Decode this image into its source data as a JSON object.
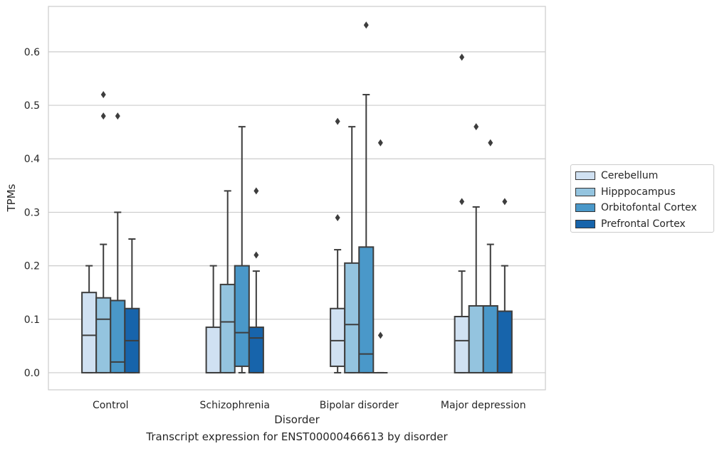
{
  "caption": "Transcript expression for ENST00000466613 by disorder",
  "colors": {
    "Cerebellum": "#d0e1f2",
    "Hipppocampus": "#94c4df",
    "Orbitofontal Cortex": "#4a98c9",
    "Prefrontal Cortex": "#1764ab",
    "box_edge": "#3d3d3d",
    "grid": "#cccccc"
  },
  "chart_data": {
    "type": "box",
    "xlabel": "Disorder",
    "ylabel": "TPMs",
    "ylim": [
      -0.032,
      0.685
    ],
    "yticks": [
      "0.0",
      "0.1",
      "0.2",
      "0.3",
      "0.4",
      "0.5",
      "0.6"
    ],
    "categories": [
      "Control",
      "Schizophrenia",
      "Bipolar disorder",
      "Major depression"
    ],
    "grid": "horizontal",
    "legend_position": "right",
    "series": [
      {
        "name": "Cerebellum",
        "boxes": [
          {
            "whislo": 0.0,
            "q1": 0.0,
            "med": 0.07,
            "q3": 0.15,
            "whishi": 0.2,
            "fliers": []
          },
          {
            "whislo": 0.0,
            "q1": 0.0,
            "med": 0.0,
            "q3": 0.085,
            "whishi": 0.2,
            "fliers": []
          },
          {
            "whislo": 0.0,
            "q1": 0.012,
            "med": 0.06,
            "q3": 0.12,
            "whishi": 0.23,
            "fliers": [
              0.29,
              0.47
            ]
          },
          {
            "whislo": 0.0,
            "q1": 0.0,
            "med": 0.06,
            "q3": 0.105,
            "whishi": 0.19,
            "fliers": [
              0.32,
              0.59
            ]
          }
        ]
      },
      {
        "name": "Hipppocampus",
        "boxes": [
          {
            "whislo": 0.0,
            "q1": 0.0,
            "med": 0.1,
            "q3": 0.14,
            "whishi": 0.24,
            "fliers": [
              0.48,
              0.52
            ]
          },
          {
            "whislo": 0.0,
            "q1": 0.0,
            "med": 0.095,
            "q3": 0.165,
            "whishi": 0.34,
            "fliers": []
          },
          {
            "whislo": 0.0,
            "q1": 0.0,
            "med": 0.09,
            "q3": 0.205,
            "whishi": 0.46,
            "fliers": []
          },
          {
            "whislo": 0.0,
            "q1": 0.0,
            "med": 0.0,
            "q3": 0.125,
            "whishi": 0.31,
            "fliers": [
              0.46
            ]
          }
        ]
      },
      {
        "name": "Orbitofontal Cortex",
        "boxes": [
          {
            "whislo": 0.0,
            "q1": 0.0,
            "med": 0.02,
            "q3": 0.135,
            "whishi": 0.3,
            "fliers": [
              0.48
            ]
          },
          {
            "whislo": 0.0,
            "q1": 0.012,
            "med": 0.075,
            "q3": 0.2,
            "whishi": 0.46,
            "fliers": []
          },
          {
            "whislo": 0.0,
            "q1": 0.0,
            "med": 0.035,
            "q3": 0.235,
            "whishi": 0.52,
            "fliers": [
              0.65
            ]
          },
          {
            "whislo": 0.0,
            "q1": 0.0,
            "med": 0.0,
            "q3": 0.125,
            "whishi": 0.24,
            "fliers": [
              0.43
            ]
          }
        ]
      },
      {
        "name": "Prefrontal Cortex",
        "boxes": [
          {
            "whislo": 0.0,
            "q1": 0.0,
            "med": 0.06,
            "q3": 0.12,
            "whishi": 0.25,
            "fliers": []
          },
          {
            "whislo": 0.0,
            "q1": 0.0,
            "med": 0.065,
            "q3": 0.085,
            "whishi": 0.19,
            "fliers": [
              0.22,
              0.34
            ]
          },
          {
            "whislo": 0.0,
            "q1": 0.0,
            "med": 0.0,
            "q3": 0.0,
            "whishi": 0.0,
            "fliers": [
              0.07,
              0.43
            ]
          },
          {
            "whislo": 0.0,
            "q1": 0.0,
            "med": 0.0,
            "q3": 0.115,
            "whishi": 0.2,
            "fliers": [
              0.32
            ]
          }
        ]
      }
    ]
  }
}
